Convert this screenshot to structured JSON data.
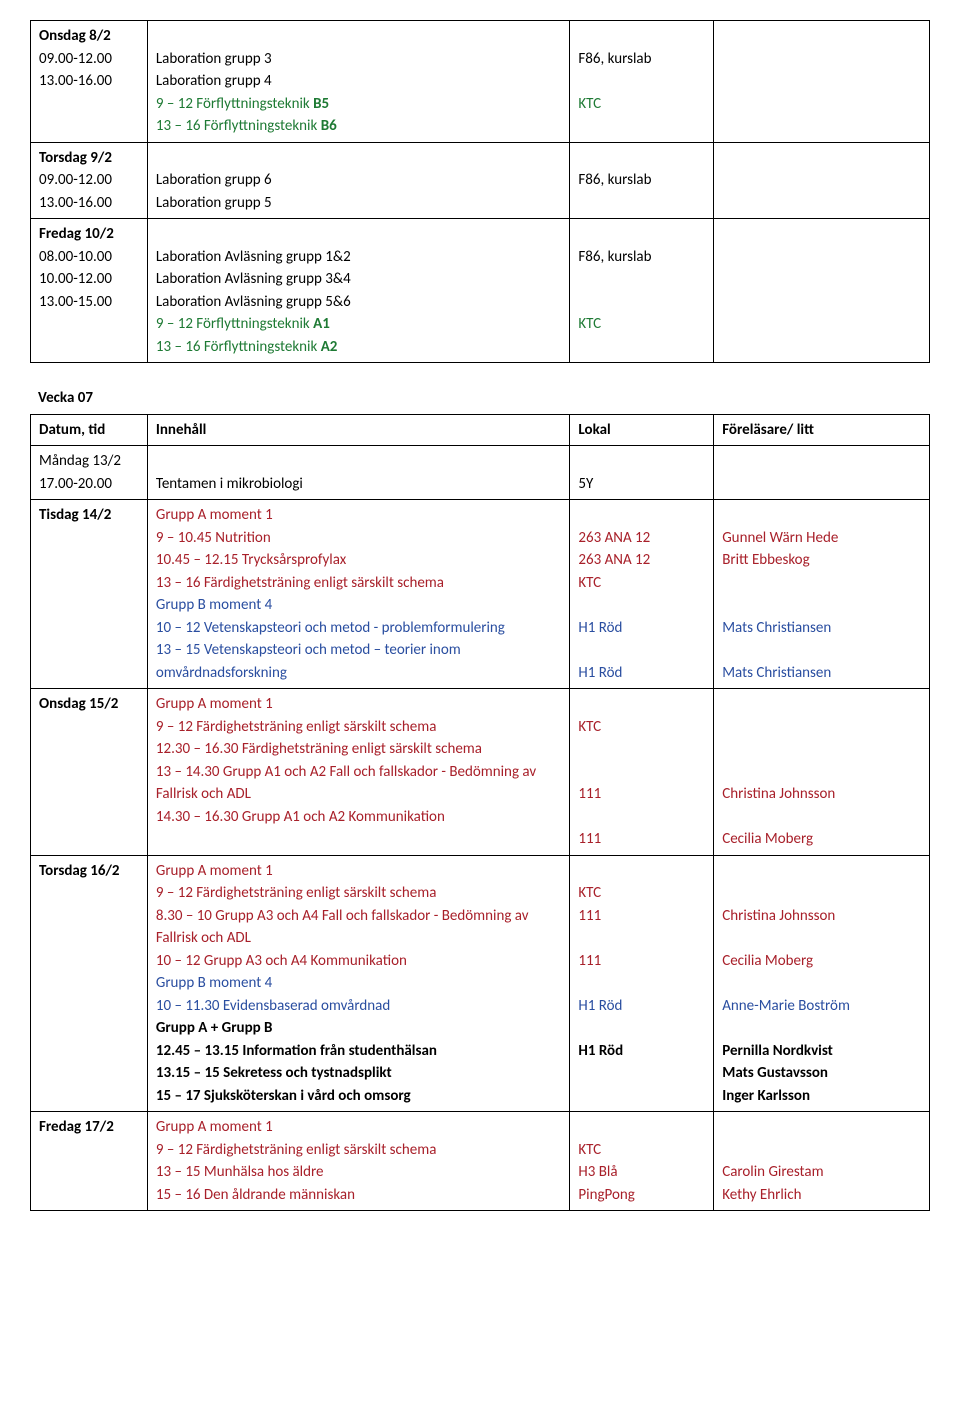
{
  "colors": {
    "text": "#000000",
    "green": "#1e7a34",
    "red": "#a8202a",
    "blue": "#2a4ea0",
    "border": "#000000",
    "background": "#ffffff"
  },
  "typography": {
    "font_family": "Calibri",
    "font_size_pt": 11,
    "line_height": 1.5
  },
  "col_widths_pct": [
    13,
    47,
    16,
    24
  ],
  "table1": {
    "rows": [
      {
        "date": [
          {
            "t": "Onsdag 8/2",
            "c": "",
            "b": true
          },
          {
            "t": "09.00-12.00",
            "c": "",
            "b": false
          },
          {
            "t": "13.00-16.00",
            "c": "",
            "b": false
          }
        ],
        "content": [
          {
            "t": "",
            "c": "",
            "b": false
          },
          {
            "t": "Laboration grupp 3",
            "c": "",
            "b": false
          },
          {
            "t": "Laboration grupp 4",
            "c": "",
            "b": false
          },
          {
            "t": "9 – 12  Förflyttningsteknik B5",
            "c": "green",
            "b": false,
            "boldtail": "B5"
          },
          {
            "t": "13 – 16 Förflyttningsteknik B6",
            "c": "green",
            "b": false,
            "boldtail": "B6"
          }
        ],
        "lokal": [
          {
            "t": "",
            "c": "",
            "b": false
          },
          {
            "t": "F86, kurslab",
            "c": "",
            "b": false
          },
          {
            "t": "",
            "c": "",
            "b": false
          },
          {
            "t": "KTC",
            "c": "green",
            "b": false
          }
        ],
        "lect": []
      },
      {
        "date": [
          {
            "t": "Torsdag 9/2",
            "c": "",
            "b": true
          },
          {
            "t": "09.00-12.00",
            "c": "",
            "b": false
          },
          {
            "t": "13.00-16.00",
            "c": "",
            "b": false
          }
        ],
        "content": [
          {
            "t": "",
            "c": "",
            "b": false
          },
          {
            "t": "Laboration grupp 6",
            "c": "",
            "b": false
          },
          {
            "t": "Laboration grupp 5",
            "c": "",
            "b": false
          }
        ],
        "lokal": [
          {
            "t": "",
            "c": "",
            "b": false
          },
          {
            "t": "F86, kurslab",
            "c": "",
            "b": false
          }
        ],
        "lect": []
      },
      {
        "date": [
          {
            "t": "Fredag 10/2",
            "c": "",
            "b": true
          },
          {
            "t": "08.00-10.00",
            "c": "",
            "b": false
          },
          {
            "t": "10.00-12.00",
            "c": "",
            "b": false
          },
          {
            "t": "13.00-15.00",
            "c": "",
            "b": false
          }
        ],
        "content": [
          {
            "t": "",
            "c": "",
            "b": false
          },
          {
            "t": "Laboration Avläsning grupp 1&2",
            "c": "",
            "b": false
          },
          {
            "t": "Laboration Avläsning grupp 3&4",
            "c": "",
            "b": false
          },
          {
            "t": "Laboration Avläsning grupp 5&6",
            "c": "",
            "b": false
          },
          {
            "t": "9 – 12  Förflyttningsteknik A1",
            "c": "green",
            "b": false,
            "boldtail": "A1"
          },
          {
            "t": "13 – 16 Förflyttningsteknik A2",
            "c": "green",
            "b": false,
            "boldtail": "A2"
          }
        ],
        "lokal": [
          {
            "t": "",
            "c": "",
            "b": false
          },
          {
            "t": "F86, kurslab",
            "c": "",
            "b": false
          },
          {
            "t": "",
            "c": "",
            "b": false
          },
          {
            "t": "",
            "c": "",
            "b": false
          },
          {
            "t": "KTC",
            "c": "green",
            "b": false
          }
        ],
        "lect": []
      }
    ]
  },
  "week_label": "Vecka 07",
  "table2": {
    "header": [
      "Datum, tid",
      "Innehåll",
      "Lokal",
      "Föreläsare/ litt"
    ],
    "rows": [
      {
        "date": [
          {
            "t": "Måndag 13/2",
            "c": "",
            "b": false
          },
          {
            "t": "17.00-20.00",
            "c": "",
            "b": false
          }
        ],
        "content": [
          {
            "t": "",
            "c": "",
            "b": false
          },
          {
            "t": "Tentamen i mikrobiologi",
            "c": "",
            "b": false
          }
        ],
        "lokal": [
          {
            "t": "",
            "c": "",
            "b": false
          },
          {
            "t": "5Y",
            "c": "",
            "b": false
          }
        ],
        "lect": []
      },
      {
        "date": [
          {
            "t": "Tisdag 14/2",
            "c": "",
            "b": true
          }
        ],
        "content": [
          {
            "t": "Grupp A moment 1",
            "c": "red",
            "b": false
          },
          {
            "t": "9 – 10.45 Nutrition",
            "c": "red",
            "b": false
          },
          {
            "t": "10.45 – 12.15 Trycksårsprofylax",
            "c": "red",
            "b": false
          },
          {
            "t": "13  – 16 Färdighetsträning enligt särskilt schema",
            "c": "red",
            "b": false
          },
          {
            "t": "Grupp B moment 4",
            "c": "blue",
            "b": false
          },
          {
            "t": "10 – 12  Vetenskapsteori och metod - problemformulering",
            "c": "blue",
            "b": false
          },
          {
            "t": "13 – 15 Vetenskapsteori och metod – teorier inom omvårdnadsforskning",
            "c": "blue",
            "b": false
          }
        ],
        "lokal": [
          {
            "t": "",
            "c": "",
            "b": false
          },
          {
            "t": "263 ANA 12",
            "c": "red",
            "b": false
          },
          {
            "t": "263 ANA 12",
            "c": "red",
            "b": false
          },
          {
            "t": "KTC",
            "c": "red",
            "b": false
          },
          {
            "t": "",
            "c": "",
            "b": false
          },
          {
            "t": "H1 Röd",
            "c": "blue",
            "b": false
          },
          {
            "t": "",
            "c": "",
            "b": false
          },
          {
            "t": "H1 Röd",
            "c": "blue",
            "b": false
          }
        ],
        "lect": [
          {
            "t": "",
            "c": "",
            "b": false
          },
          {
            "t": "Gunnel Wärn Hede",
            "c": "red",
            "b": false
          },
          {
            "t": "Britt Ebbeskog",
            "c": "red",
            "b": false
          },
          {
            "t": "",
            "c": "",
            "b": false
          },
          {
            "t": "",
            "c": "",
            "b": false
          },
          {
            "t": "Mats Christiansen",
            "c": "blue",
            "b": false
          },
          {
            "t": "",
            "c": "",
            "b": false
          },
          {
            "t": "Mats Christiansen",
            "c": "blue",
            "b": false
          }
        ]
      },
      {
        "date": [
          {
            "t": "Onsdag 15/2",
            "c": "",
            "b": true
          }
        ],
        "content": [
          {
            "t": "Grupp A moment 1",
            "c": "red",
            "b": false
          },
          {
            "t": "9 – 12 Färdighetsträning enligt särskilt schema",
            "c": "red",
            "b": false
          },
          {
            "t": "12.30 – 16.30 Färdighetsträning enligt särskilt schema",
            "c": "red",
            "b": false
          },
          {
            "t": "13 – 14.30 Grupp A1 och A2 Fall och fallskador - Bedömning av Fallrisk och ADL",
            "c": "red",
            "b": false
          },
          {
            "t": "14.30 – 16.30 Grupp A1 och A2 Kommunikation",
            "c": "red",
            "b": false
          }
        ],
        "lokal": [
          {
            "t": "",
            "c": "",
            "b": false
          },
          {
            "t": "KTC",
            "c": "red",
            "b": false
          },
          {
            "t": "",
            "c": "",
            "b": false
          },
          {
            "t": "",
            "c": "",
            "b": false
          },
          {
            "t": "111",
            "c": "red",
            "b": false
          },
          {
            "t": "",
            "c": "",
            "b": false
          },
          {
            "t": "111",
            "c": "red",
            "b": false
          }
        ],
        "lect": [
          {
            "t": "",
            "c": "",
            "b": false
          },
          {
            "t": "",
            "c": "",
            "b": false
          },
          {
            "t": "",
            "c": "",
            "b": false
          },
          {
            "t": "",
            "c": "",
            "b": false
          },
          {
            "t": "Christina Johnsson",
            "c": "red",
            "b": false
          },
          {
            "t": "",
            "c": "",
            "b": false
          },
          {
            "t": "Cecilia Moberg",
            "c": "red",
            "b": false
          }
        ]
      },
      {
        "date": [
          {
            "t": "Torsdag 16/2",
            "c": "",
            "b": true
          }
        ],
        "content": [
          {
            "t": "Grupp A moment 1",
            "c": "red",
            "b": false
          },
          {
            "t": "9 – 12 Färdighetsträning enligt särskilt schema",
            "c": "red",
            "b": false
          },
          {
            "t": "8.30 – 10 Grupp A3 och A4 Fall och fallskador - Bedömning av Fallrisk och ADL",
            "c": "red",
            "b": false
          },
          {
            "t": "10 – 12 Grupp A3 och A4 Kommunikation",
            "c": "red",
            "b": false
          },
          {
            "t": "Grupp B moment 4",
            "c": "blue",
            "b": false
          },
          {
            "t": "10 – 11.30 Evidensbaserad omvårdnad",
            "c": "blue",
            "b": false
          },
          {
            "t": "Grupp A + Grupp B",
            "c": "",
            "b": true
          },
          {
            "t": "12.45 – 13.15 Information från studenthälsan",
            "c": "",
            "b": true
          },
          {
            "t": "13.15 – 15  Sekretess och tystnadsplikt",
            "c": "",
            "b": true
          },
          {
            "t": "15 – 17 Sjuksköterskan i vård och omsorg",
            "c": "",
            "b": true
          }
        ],
        "lokal": [
          {
            "t": "",
            "c": "",
            "b": false
          },
          {
            "t": "KTC",
            "c": "red",
            "b": false
          },
          {
            "t": "111",
            "c": "red",
            "b": false
          },
          {
            "t": "",
            "c": "",
            "b": false
          },
          {
            "t": "111",
            "c": "red",
            "b": false
          },
          {
            "t": "",
            "c": "",
            "b": false
          },
          {
            "t": "H1 Röd",
            "c": "blue",
            "b": false
          },
          {
            "t": "",
            "c": "",
            "b": false
          },
          {
            "t": "H1 Röd",
            "c": "",
            "b": true
          }
        ],
        "lect": [
          {
            "t": "",
            "c": "",
            "b": false
          },
          {
            "t": "",
            "c": "",
            "b": false
          },
          {
            "t": "Christina Johnsson",
            "c": "red",
            "b": false
          },
          {
            "t": "",
            "c": "",
            "b": false
          },
          {
            "t": "Cecilia Moberg",
            "c": "red",
            "b": false
          },
          {
            "t": "",
            "c": "",
            "b": false
          },
          {
            "t": "Anne-Marie Boström",
            "c": "blue",
            "b": false
          },
          {
            "t": "",
            "c": "",
            "b": false
          },
          {
            "t": "Pernilla Nordkvist",
            "c": "",
            "b": true
          },
          {
            "t": "Mats Gustavsson",
            "c": "",
            "b": true
          },
          {
            "t": "Inger Karlsson",
            "c": "",
            "b": true
          }
        ]
      },
      {
        "date": [
          {
            "t": "Fredag 17/2",
            "c": "",
            "b": true
          }
        ],
        "content": [
          {
            "t": "Grupp A moment 1",
            "c": "red",
            "b": false
          },
          {
            "t": "9 – 12 Färdighetsträning enligt särskilt schema",
            "c": "red",
            "b": false
          },
          {
            "t": "13 – 15 Munhälsa hos äldre",
            "c": "red",
            "b": false
          },
          {
            "t": "15 – 16 Den åldrande människan",
            "c": "red",
            "b": false
          }
        ],
        "lokal": [
          {
            "t": "",
            "c": "",
            "b": false
          },
          {
            "t": "KTC",
            "c": "red",
            "b": false
          },
          {
            "t": "H3 Blå",
            "c": "red",
            "b": false
          },
          {
            "t": "PingPong",
            "c": "red",
            "b": false
          }
        ],
        "lect": [
          {
            "t": "",
            "c": "",
            "b": false
          },
          {
            "t": "",
            "c": "",
            "b": false
          },
          {
            "t": "Carolin Girestam",
            "c": "red",
            "b": false
          },
          {
            "t": "Kethy Ehrlich",
            "c": "red",
            "b": false
          }
        ]
      }
    ]
  }
}
